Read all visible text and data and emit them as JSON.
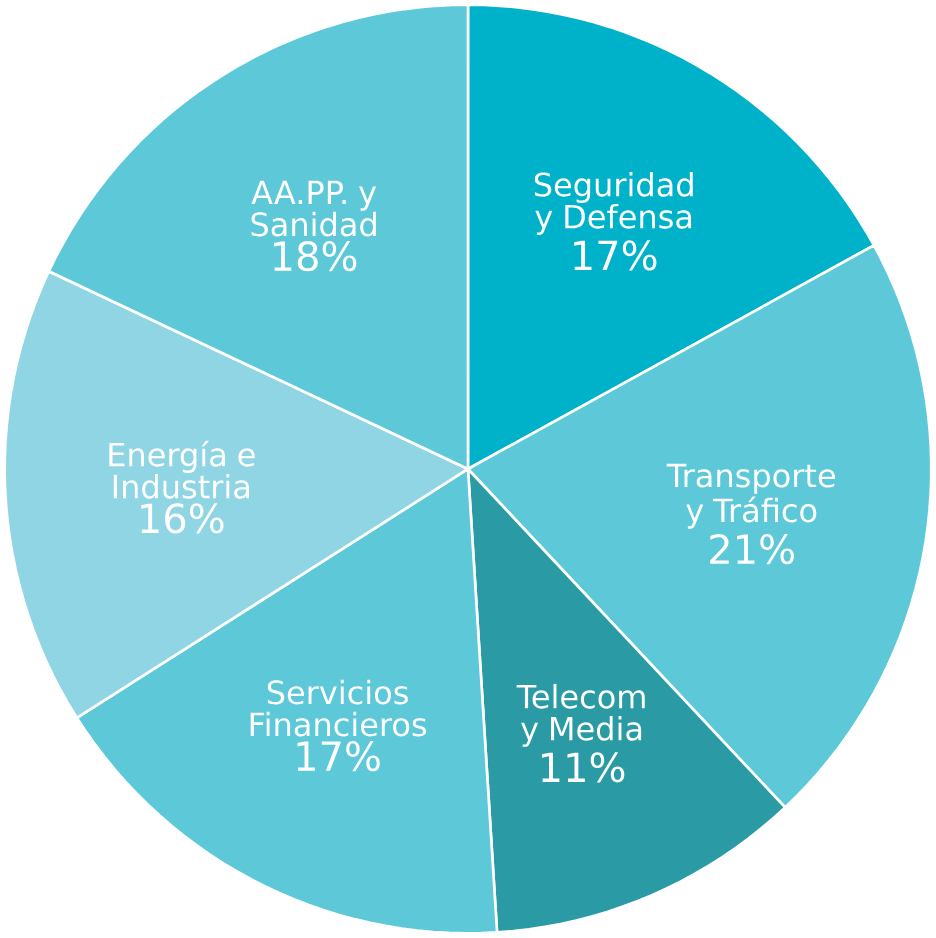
{
  "chart_data": {
    "type": "pie",
    "categories": [
      "Seguridad y Defensa",
      "Transporte y Tráfico",
      "Telecom y Media",
      "Servicios Financieros",
      "Energía e Industria",
      "AA.PP. y Sanidad"
    ],
    "values": [
      17,
      21,
      11,
      17,
      16,
      18
    ],
    "value_labels": [
      "17%",
      "21%",
      "11%",
      "17%",
      "16%",
      "18%"
    ],
    "colors": [
      "#00b2c9",
      "#5cc8d8",
      "#2a9aa5",
      "#5cc8d8",
      "#8fd5e3",
      "#5cc8d8"
    ]
  }
}
